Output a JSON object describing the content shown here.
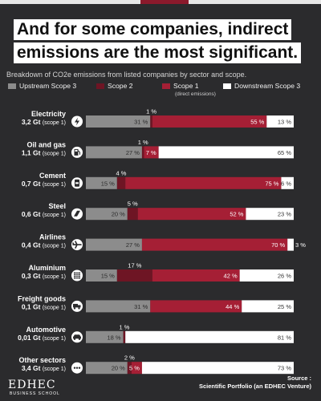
{
  "title_lines": [
    "And for some companies, indirect",
    "emissions are the most significant."
  ],
  "subtitle": "Breakdown of CO2e emissions from listed companies by sector and scope.",
  "legend": [
    {
      "label": "Upstream Scope 3",
      "color": "#8c8c8c"
    },
    {
      "label": "Scope 2",
      "color": "#6e1524"
    },
    {
      "label": "Scope 1",
      "color": "#a51f35"
    },
    {
      "label": "Downstream Scope 3",
      "color": "#ffffff"
    }
  ],
  "legend_note": "(direct emissions)",
  "source_label": "Source :",
  "source_text": "Scientific Portfolio (an EDHEC Venture)",
  "logo_text": "EDHEC",
  "logo_subtext": "BUSINESS SCHOOL",
  "chart_data": {
    "type": "bar",
    "orientation": "horizontal",
    "stacked": true,
    "normalized_percent": true,
    "series_order": [
      "Upstream Scope 3",
      "Scope 2",
      "Scope 1",
      "Downstream Scope 3"
    ],
    "categories": [
      {
        "name": "Electricity",
        "value": "3,2 Gt",
        "note": "(scope 1)",
        "icon": "lightning-icon",
        "values": [
          31,
          1,
          55,
          13
        ],
        "labels": [
          "31 %",
          "1 %",
          "55 %",
          "13 %"
        ]
      },
      {
        "name": "Oil and gas",
        "value": "1,1 Gt",
        "note": "(scope 1)",
        "icon": "gas-pump-icon",
        "values": [
          27,
          1,
          7,
          65
        ],
        "labels": [
          "27 %",
          "1 %",
          "7 %",
          "65 %"
        ]
      },
      {
        "name": "Cement",
        "value": "0,7 Gt",
        "note": "(scope 1)",
        "icon": "cement-icon",
        "values": [
          15,
          4,
          75,
          6
        ],
        "labels": [
          "15 %",
          "4 %",
          "75 %",
          "6 %"
        ]
      },
      {
        "name": "Steel",
        "value": "0,6 Gt",
        "note": "(scope 1)",
        "icon": "steel-icon",
        "values": [
          20,
          5,
          52,
          23
        ],
        "labels": [
          "20 %",
          "5 %",
          "52 %",
          "23 %"
        ]
      },
      {
        "name": "Airlines",
        "value": "0,4 Gt",
        "note": "(scope 1)",
        "icon": "airplane-icon",
        "values": [
          27,
          0,
          70,
          3
        ],
        "labels": [
          "27 %",
          "",
          "70 %",
          "3 %"
        ]
      },
      {
        "name": "Aluminium",
        "value": "0,3 Gt",
        "note": "(scope 1)",
        "icon": "aluminium-icon",
        "values": [
          15,
          17,
          42,
          26
        ],
        "labels": [
          "15 %",
          "17 %",
          "42 %",
          "26 %"
        ]
      },
      {
        "name": "Freight goods",
        "value": "0,1 Gt",
        "note": "(scope 1)",
        "icon": "truck-icon",
        "values": [
          31,
          0,
          44,
          25
        ],
        "labels": [
          "31 %",
          "",
          "44 %",
          "25 %"
        ]
      },
      {
        "name": "Automotive",
        "value": "0,01 Gt",
        "note": "(scope 1)",
        "icon": "car-icon",
        "values": [
          18,
          1,
          0,
          81
        ],
        "labels": [
          "18 %",
          "1 %",
          "",
          "81 %"
        ]
      },
      {
        "name": "Other sectors",
        "value": "3,4 Gt",
        "note": "(scope 1)",
        "icon": "more-icon",
        "values": [
          20,
          2,
          5,
          73
        ],
        "labels": [
          "20 %",
          "2 %",
          "5 %",
          "73 %"
        ]
      }
    ],
    "colors": [
      "#8c8c8c",
      "#6e1524",
      "#a51f35",
      "#ffffff"
    ],
    "label_text_colors": [
      "#2b2b2b",
      "#ffffff",
      "#ffffff",
      "#333333"
    ]
  }
}
